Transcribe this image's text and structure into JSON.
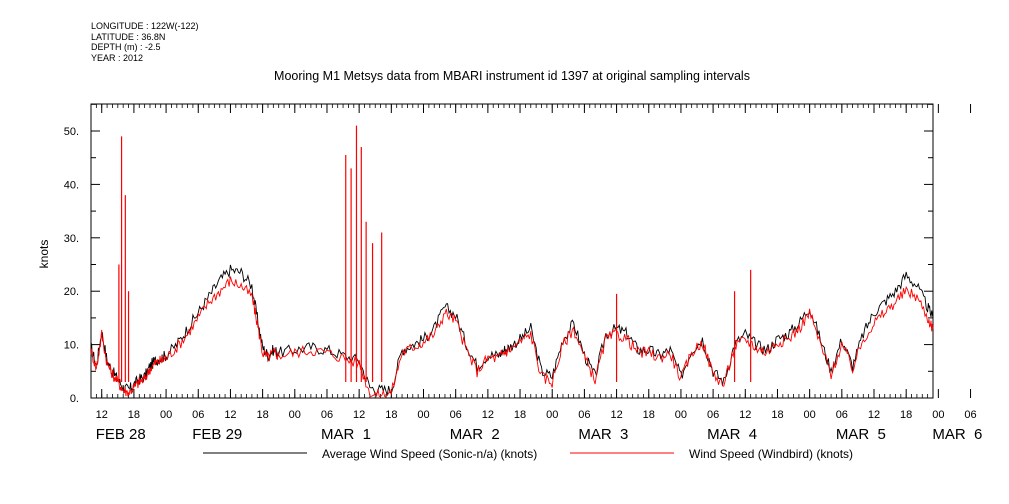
{
  "meta": {
    "longitude": "LONGITUDE : 122W(-122)",
    "latitude": "LATITUDE : 36.8N",
    "depth": "DEPTH (m) : -2.5",
    "year": "YEAR : 2012"
  },
  "chart_data": {
    "type": "line",
    "title": "Mooring M1 Metsys data from MBARI instrument id 1397 at original sampling intervals",
    "ylabel": "knots",
    "xlabel": "",
    "ylim": [
      0,
      55
    ],
    "xlim_hours": [
      -14,
      143
    ],
    "yticks": [
      "0.",
      "10.",
      "20.",
      "30.",
      "40.",
      "50."
    ],
    "ytick_values": [
      0,
      10,
      20,
      30,
      40,
      50
    ],
    "xticks_hour": [
      "12",
      "18",
      "00",
      "06",
      "12",
      "18",
      "00",
      "06",
      "12",
      "18",
      "00",
      "06",
      "12",
      "18",
      "00",
      "06",
      "12",
      "18",
      "00",
      "06",
      "12",
      "18",
      "00",
      "06",
      "12",
      "18",
      "00",
      "06"
    ],
    "xtick_hours": [
      -12,
      -6,
      0,
      6,
      12,
      18,
      24,
      30,
      36,
      42,
      48,
      54,
      60,
      66,
      72,
      78,
      84,
      90,
      96,
      102,
      108,
      114,
      120,
      126,
      132,
      138,
      144,
      150
    ],
    "day_labels": [
      {
        "label": "FEB 28",
        "hour": -12
      },
      {
        "label": "FEB 29",
        "hour": 6
      },
      {
        "label": "MAR  1",
        "hour": 30
      },
      {
        "label": "MAR  2",
        "hour": 54
      },
      {
        "label": "MAR  3",
        "hour": 78
      },
      {
        "label": "MAR  4",
        "hour": 102
      },
      {
        "label": "MAR  5",
        "hour": 126
      },
      {
        "label": "MAR  6",
        "hour": 144
      }
    ],
    "grid": false,
    "legend_position": "bottom",
    "series": [
      {
        "name": "Average Wind Speed (Sonic-n/a) (knots)",
        "color": "#000000",
        "x_hours": [
          -14,
          -13,
          -12,
          -11,
          -10,
          -9,
          -8,
          -7,
          -6,
          -5,
          -4,
          -3,
          -2,
          -1,
          0,
          2,
          4,
          6,
          8,
          10,
          12,
          14,
          16,
          17,
          18,
          19,
          20,
          21,
          24,
          27,
          30,
          33,
          36,
          38,
          40,
          42,
          44,
          46,
          48,
          50,
          52,
          54,
          56,
          58,
          60,
          62,
          63,
          64,
          66,
          68,
          70,
          72,
          74,
          76,
          78,
          80,
          82,
          84,
          86,
          88,
          90,
          92,
          94,
          96,
          98,
          100,
          102,
          104,
          106,
          108,
          110,
          112,
          114,
          116,
          118,
          120,
          122,
          124,
          126,
          128,
          130,
          132,
          134,
          136,
          138,
          140,
          142,
          143
        ],
        "values": [
          9.5,
          6,
          12.5,
          7,
          5,
          3.5,
          2,
          1.5,
          2.5,
          3.5,
          4,
          6,
          7,
          7.5,
          8,
          10,
          13,
          16,
          19,
          22,
          24,
          23.5,
          21,
          15,
          9.5,
          8,
          9,
          8.5,
          9,
          9.5,
          9,
          8,
          7,
          2,
          1.5,
          1.5,
          9,
          10,
          11,
          13,
          17,
          15.5,
          10,
          6,
          8,
          8,
          9,
          9.5,
          11,
          13,
          5,
          4,
          11,
          14,
          8,
          4,
          12,
          13,
          12,
          9,
          9,
          8,
          9,
          4,
          9,
          11,
          5,
          3,
          10,
          12,
          10,
          9,
          11,
          12,
          14,
          17,
          11,
          5,
          11,
          6,
          12,
          16,
          18,
          20,
          23,
          21,
          17,
          15
        ]
      },
      {
        "name": "Wind Speed (Windbird) (knots)",
        "color": "#ff0000",
        "x_hours": [
          -14,
          -13,
          -12,
          -11,
          -10,
          -9,
          -8,
          -7,
          -6,
          -5,
          -4,
          -3,
          -2,
          -1,
          0,
          2,
          4,
          6,
          8,
          10,
          12,
          14,
          16,
          17,
          18,
          19,
          20,
          21,
          24,
          27,
          30,
          33,
          36,
          38,
          40,
          42,
          44,
          46,
          48,
          50,
          52,
          54,
          56,
          58,
          60,
          62,
          63,
          64,
          66,
          68,
          70,
          72,
          74,
          76,
          78,
          80,
          82,
          84,
          86,
          88,
          90,
          92,
          94,
          96,
          98,
          100,
          102,
          104,
          106,
          108,
          110,
          112,
          114,
          116,
          118,
          120,
          122,
          124,
          126,
          128,
          130,
          132,
          134,
          136,
          138,
          140,
          142,
          143
        ],
        "values": [
          9,
          5.5,
          12,
          6.5,
          4.5,
          3,
          1.5,
          1,
          2,
          3,
          3.5,
          5.5,
          6.5,
          7,
          7.5,
          9.5,
          12,
          15,
          18,
          20,
          22,
          21,
          19,
          14,
          8.5,
          7.5,
          8.5,
          8,
          8.5,
          9,
          8.5,
          7.5,
          6.5,
          1,
          0.5,
          1,
          8.5,
          9.5,
          10.5,
          12,
          16,
          14.5,
          9,
          5,
          7.5,
          7.5,
          8.5,
          9,
          10.5,
          12,
          4,
          3,
          10,
          13,
          7.5,
          3.5,
          11,
          12,
          11,
          8.5,
          8.5,
          7.5,
          8.5,
          3.5,
          8.5,
          10.5,
          4.5,
          2.5,
          9.5,
          11,
          9.5,
          8.5,
          10.5,
          11,
          13,
          16,
          10,
          4.5,
          10,
          5.5,
          11,
          14,
          16,
          18,
          20,
          19,
          15,
          13
        ]
      }
    ],
    "spikes": [
      {
        "hour": -8.8,
        "value": 25
      },
      {
        "hour": -8.3,
        "value": 49
      },
      {
        "hour": -7.6,
        "value": 38
      },
      {
        "hour": -7.0,
        "value": 20
      },
      {
        "hour": 33.5,
        "value": 45.5
      },
      {
        "hour": 34.5,
        "value": 43
      },
      {
        "hour": 35.5,
        "value": 51
      },
      {
        "hour": 36.4,
        "value": 47
      },
      {
        "hour": 37.3,
        "value": 33
      },
      {
        "hour": 38.5,
        "value": 29
      },
      {
        "hour": 40.2,
        "value": 31
      },
      {
        "hour": 84.0,
        "value": 19.5
      },
      {
        "hour": 106.0,
        "value": 20
      },
      {
        "hour": 109.0,
        "value": 24
      }
    ]
  }
}
